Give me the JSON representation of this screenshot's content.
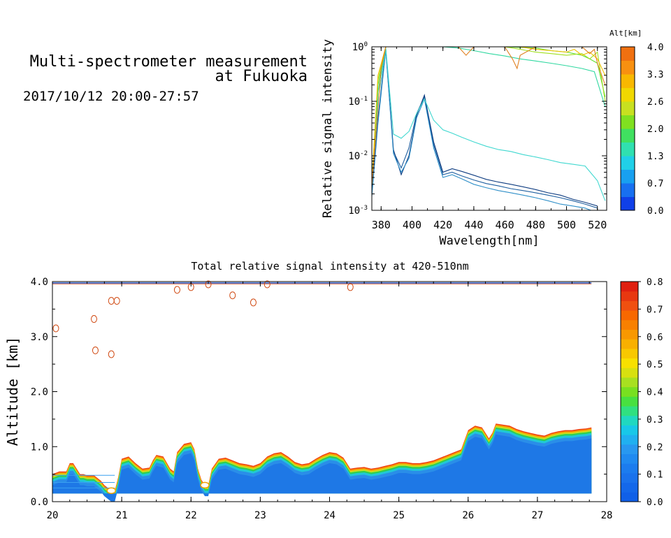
{
  "header": {
    "title_line1": "Multi-spectrometer measurement",
    "title_line2": "at Fukuoka",
    "date": "2017/10/12 20:00-27:57"
  },
  "chart_data": [
    {
      "type": "line",
      "xlabel": "Wavelength[nm]",
      "ylabel": "Relative signal intensity",
      "xlim": [
        374,
        526
      ],
      "ylim": [
        0.001,
        1
      ],
      "yscale": "log",
      "xticks": [
        "380",
        "400",
        "420",
        "440",
        "460",
        "480",
        "500",
        "520"
      ],
      "yticks": [
        "10^-3",
        "10^-2",
        "10^-1",
        "10^0"
      ],
      "colorbar": {
        "label": "Alt[km]",
        "ticks": [
          "0.0",
          "0.7",
          "1.3",
          "2.0",
          "2.6",
          "3.3",
          "4.0"
        ]
      },
      "series": [
        {
          "color": "#1e5fa0",
          "x": [
            374,
            378,
            383,
            388,
            393,
            398,
            403,
            408,
            414,
            420,
            426,
            432,
            440,
            448,
            456,
            464,
            472,
            480,
            488,
            496,
            504,
            512,
            520
          ],
          "values": [
            0.0022,
            0.05,
            0.9,
            0.012,
            0.006,
            0.014,
            0.06,
            0.12,
            0.016,
            0.0045,
            0.005,
            0.0043,
            0.0036,
            0.0031,
            0.0028,
            0.0025,
            0.0023,
            0.0021,
            0.0019,
            0.0017,
            0.0015,
            0.0013,
            0.0011
          ]
        },
        {
          "color": "#0e3c80",
          "x": [
            374,
            378,
            383,
            388,
            393,
            398,
            403,
            408,
            414,
            420,
            426,
            432,
            440,
            448,
            456,
            464,
            472,
            480,
            488,
            496,
            504,
            512,
            520
          ],
          "values": [
            0.002,
            0.045,
            0.92,
            0.013,
            0.0045,
            0.01,
            0.055,
            0.13,
            0.018,
            0.005,
            0.0058,
            0.0052,
            0.0044,
            0.0037,
            0.0033,
            0.003,
            0.0027,
            0.0024,
            0.0021,
            0.0019,
            0.0016,
            0.0014,
            0.0012
          ]
        },
        {
          "color": "#2f8fc8",
          "x": [
            374,
            378,
            383,
            388,
            393,
            398,
            403,
            408,
            414,
            420,
            426,
            432,
            440,
            448,
            456,
            464,
            472,
            480,
            488,
            496,
            504,
            512,
            520
          ],
          "values": [
            0.0018,
            0.04,
            0.85,
            0.011,
            0.005,
            0.009,
            0.05,
            0.11,
            0.014,
            0.004,
            0.0045,
            0.0038,
            0.003,
            0.0026,
            0.0023,
            0.0021,
            0.0019,
            0.0017,
            0.0015,
            0.0013,
            0.0012,
            0.0011,
            0.0009
          ]
        },
        {
          "color": "#40d8d0",
          "x": [
            374,
            378,
            383,
            388,
            393,
            398,
            403,
            408,
            414,
            420,
            426,
            432,
            440,
            448,
            456,
            464,
            472,
            480,
            488,
            496,
            504,
            512,
            520,
            525
          ],
          "values": [
            0.004,
            0.1,
            0.95,
            0.025,
            0.021,
            0.028,
            0.06,
            0.11,
            0.045,
            0.03,
            0.026,
            0.022,
            0.018,
            0.015,
            0.013,
            0.012,
            0.0105,
            0.0095,
            0.0085,
            0.0075,
            0.007,
            0.0065,
            0.0035,
            0.0015
          ]
        },
        {
          "color": "#30d8a0",
          "x": [
            374,
            378,
            383,
            390,
            400,
            410,
            420,
            430,
            440,
            450,
            460,
            470,
            480,
            490,
            500,
            510,
            518,
            525
          ],
          "values": [
            0.004,
            0.15,
            1.0,
            1.0,
            1.0,
            1.0,
            1.0,
            0.95,
            0.85,
            0.75,
            0.68,
            0.6,
            0.55,
            0.5,
            0.45,
            0.4,
            0.35,
            0.08
          ]
        },
        {
          "color": "#60e030",
          "x": [
            374,
            378,
            383,
            390,
            400,
            420,
            440,
            460,
            480,
            490,
            500,
            510,
            515,
            520,
            525
          ],
          "values": [
            0.003,
            0.2,
            1.0,
            1.0,
            1.0,
            1.0,
            1.0,
            1.0,
            0.95,
            0.85,
            0.8,
            0.7,
            0.6,
            0.5,
            0.12
          ]
        },
        {
          "color": "#a0e020",
          "x": [
            374,
            378,
            383,
            390,
            400,
            420,
            440,
            460,
            470,
            480,
            490,
            500,
            510,
            515,
            520,
            525
          ],
          "values": [
            0.003,
            0.25,
            1.0,
            1.0,
            1.0,
            1.0,
            1.0,
            1.0,
            0.9,
            0.8,
            0.75,
            0.7,
            0.75,
            0.6,
            0.8,
            0.1
          ]
        },
        {
          "color": "#f0c000",
          "x": [
            374,
            378,
            383,
            400,
            420,
            440,
            460,
            470,
            480,
            490,
            500,
            505,
            510,
            515,
            520,
            525
          ],
          "values": [
            0.003,
            0.3,
            1.0,
            1.0,
            1.0,
            1.0,
            1.0,
            1.0,
            0.9,
            0.85,
            0.8,
            0.9,
            0.7,
            0.8,
            0.6,
            0.3
          ]
        },
        {
          "color": "#e08020",
          "x": [
            374,
            380,
            383,
            430,
            435,
            440,
            460,
            465,
            468,
            470,
            480,
            500,
            510,
            515,
            518,
            520,
            525
          ],
          "values": [
            0.003,
            0.4,
            1.0,
            1.0,
            0.7,
            1.0,
            1.0,
            0.6,
            0.4,
            0.7,
            1.0,
            1.0,
            1.0,
            0.75,
            0.9,
            0.5,
            0.2
          ]
        }
      ]
    },
    {
      "type": "heatmap",
      "title": "Total relative signal intensity at 420-510nm",
      "xlabel": "",
      "ylabel": "Altitude [km]",
      "xlim": [
        20,
        28
      ],
      "ylim": [
        0,
        4
      ],
      "xticks": [
        "20",
        "21",
        "22",
        "23",
        "24",
        "25",
        "26",
        "27",
        "28"
      ],
      "yticks": [
        "0.0",
        "1.0",
        "2.0",
        "3.0",
        "4.0"
      ],
      "colorbar": {
        "ticks": [
          "0.0",
          "0.1",
          "0.2",
          "0.3",
          "0.4",
          "0.5",
          "0.6",
          "0.7",
          "0.8"
        ],
        "range": [
          0,
          0.8
        ]
      },
      "layer_top_km": {
        "x": [
          20.0,
          20.1,
          20.2,
          20.25,
          20.3,
          20.4,
          20.45,
          20.5,
          20.6,
          20.7,
          20.75,
          20.8,
          20.85,
          20.9,
          20.95,
          21.0,
          21.1,
          21.2,
          21.3,
          21.4,
          21.45,
          21.5,
          21.6,
          21.7,
          21.75,
          21.8,
          21.9,
          22.0,
          22.05,
          22.1,
          22.15,
          22.2,
          22.25,
          22.3,
          22.4,
          22.5,
          22.6,
          22.7,
          22.8,
          22.9,
          23.0,
          23.1,
          23.2,
          23.3,
          23.4,
          23.5,
          23.6,
          23.7,
          23.8,
          23.9,
          24.0,
          24.1,
          24.2,
          24.3,
          24.4,
          24.5,
          24.6,
          24.7,
          24.8,
          24.9,
          25.0,
          25.1,
          25.2,
          25.3,
          25.4,
          25.5,
          25.6,
          25.7,
          25.8,
          25.9,
          26.0,
          26.1,
          26.2,
          26.3,
          26.35,
          26.4,
          26.5,
          26.6,
          26.7,
          26.8,
          26.9,
          27.0,
          27.1,
          27.2,
          27.3,
          27.4,
          27.5,
          27.6,
          27.7,
          27.78
        ],
        "values": [
          0.5,
          0.55,
          0.55,
          0.7,
          0.7,
          0.5,
          0.5,
          0.48,
          0.48,
          0.38,
          0.3,
          0.25,
          0.2,
          0.2,
          0.45,
          0.78,
          0.82,
          0.7,
          0.6,
          0.62,
          0.75,
          0.85,
          0.82,
          0.6,
          0.55,
          0.9,
          1.05,
          1.08,
          0.95,
          0.6,
          0.4,
          0.3,
          0.3,
          0.6,
          0.78,
          0.8,
          0.75,
          0.7,
          0.68,
          0.65,
          0.7,
          0.82,
          0.88,
          0.9,
          0.82,
          0.72,
          0.68,
          0.7,
          0.78,
          0.85,
          0.9,
          0.88,
          0.8,
          0.6,
          0.62,
          0.63,
          0.6,
          0.62,
          0.65,
          0.68,
          0.72,
          0.72,
          0.7,
          0.7,
          0.72,
          0.75,
          0.8,
          0.85,
          0.9,
          0.95,
          1.3,
          1.38,
          1.35,
          1.15,
          1.25,
          1.42,
          1.4,
          1.38,
          1.32,
          1.28,
          1.25,
          1.22,
          1.2,
          1.25,
          1.28,
          1.3,
          1.3,
          1.32,
          1.33,
          1.35
        ]
      },
      "layer_base_km": 0.15,
      "upper_contours": [
        {
          "x": 20.05,
          "y": 3.15
        },
        {
          "x": 20.6,
          "y": 3.32
        },
        {
          "x": 20.62,
          "y": 2.75
        },
        {
          "x": 20.85,
          "y": 3.65
        },
        {
          "x": 20.93,
          "y": 3.65
        },
        {
          "x": 20.85,
          "y": 2.68
        },
        {
          "x": 21.8,
          "y": 3.85
        },
        {
          "x": 22.0,
          "y": 3.9
        },
        {
          "x": 22.25,
          "y": 3.95
        },
        {
          "x": 22.6,
          "y": 3.75
        },
        {
          "x": 22.9,
          "y": 3.62
        },
        {
          "x": 23.1,
          "y": 3.95
        },
        {
          "x": 24.3,
          "y": 3.9
        }
      ]
    }
  ]
}
